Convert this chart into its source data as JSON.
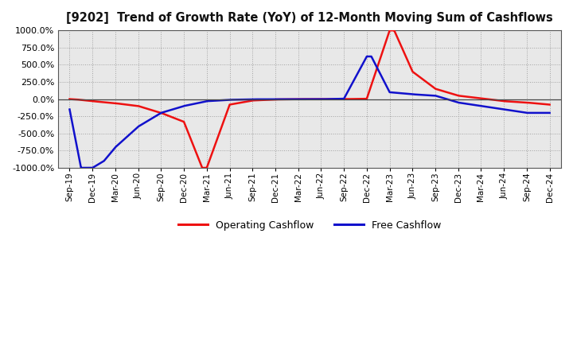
{
  "title": "[9202]  Trend of Growth Rate (YoY) of 12-Month Moving Sum of Cashflows",
  "title_fontsize": 10.5,
  "ylim": [
    -1000,
    1000
  ],
  "yticks": [
    -1000,
    -750,
    -500,
    -250,
    0,
    250,
    500,
    750,
    1000
  ],
  "operating_color": "#ee1111",
  "free_color": "#1111cc",
  "background_color": "#ffffff",
  "plot_bg_color": "#e8e8e8",
  "grid_color": "#999999",
  "legend_labels": [
    "Operating Cashflow",
    "Free Cashflow"
  ],
  "x_labels": [
    "Sep-19",
    "Dec-19",
    "Mar-20",
    "Jun-20",
    "Sep-20",
    "Dec-20",
    "Mar-21",
    "Jun-21",
    "Sep-21",
    "Dec-21",
    "Mar-22",
    "Jun-22",
    "Sep-22",
    "Dec-22",
    "Mar-23",
    "Jun-23",
    "Sep-23",
    "Dec-23",
    "Mar-24",
    "Jun-24",
    "Sep-24",
    "Dec-24"
  ],
  "operating_x": [
    0,
    0.3,
    1,
    2,
    3,
    4,
    5,
    5.8,
    6,
    7,
    8,
    9,
    10,
    11,
    12,
    13,
    14.0,
    14.2,
    15,
    16,
    17,
    18,
    19,
    20,
    21
  ],
  "operating_y": [
    0.0,
    -5.0,
    -30.0,
    -60.0,
    -100.0,
    -200.0,
    -330.0,
    -999.0,
    -999.0,
    -80.0,
    -20.0,
    -5.0,
    0.0,
    0.0,
    0.0,
    5.0,
    999.0,
    999.0,
    400.0,
    150.0,
    50.0,
    10.0,
    -30.0,
    -50.0,
    -80.0
  ],
  "free_x": [
    0,
    0.5,
    1.0,
    1.5,
    2,
    3,
    4,
    5,
    6,
    7,
    8,
    9,
    10,
    11,
    12,
    13,
    13.2,
    14,
    15,
    16,
    17,
    18,
    19,
    20,
    21
  ],
  "free_y": [
    -150.0,
    -999.0,
    -999.0,
    -900.0,
    -700.0,
    -400.0,
    -200.0,
    -100.0,
    -30.0,
    -10.0,
    -3.0,
    -2.0,
    -2.0,
    -2.0,
    5.0,
    620.0,
    620.0,
    100.0,
    70.0,
    50.0,
    -50.0,
    -100.0,
    -150.0,
    -200.0,
    -200.0
  ]
}
